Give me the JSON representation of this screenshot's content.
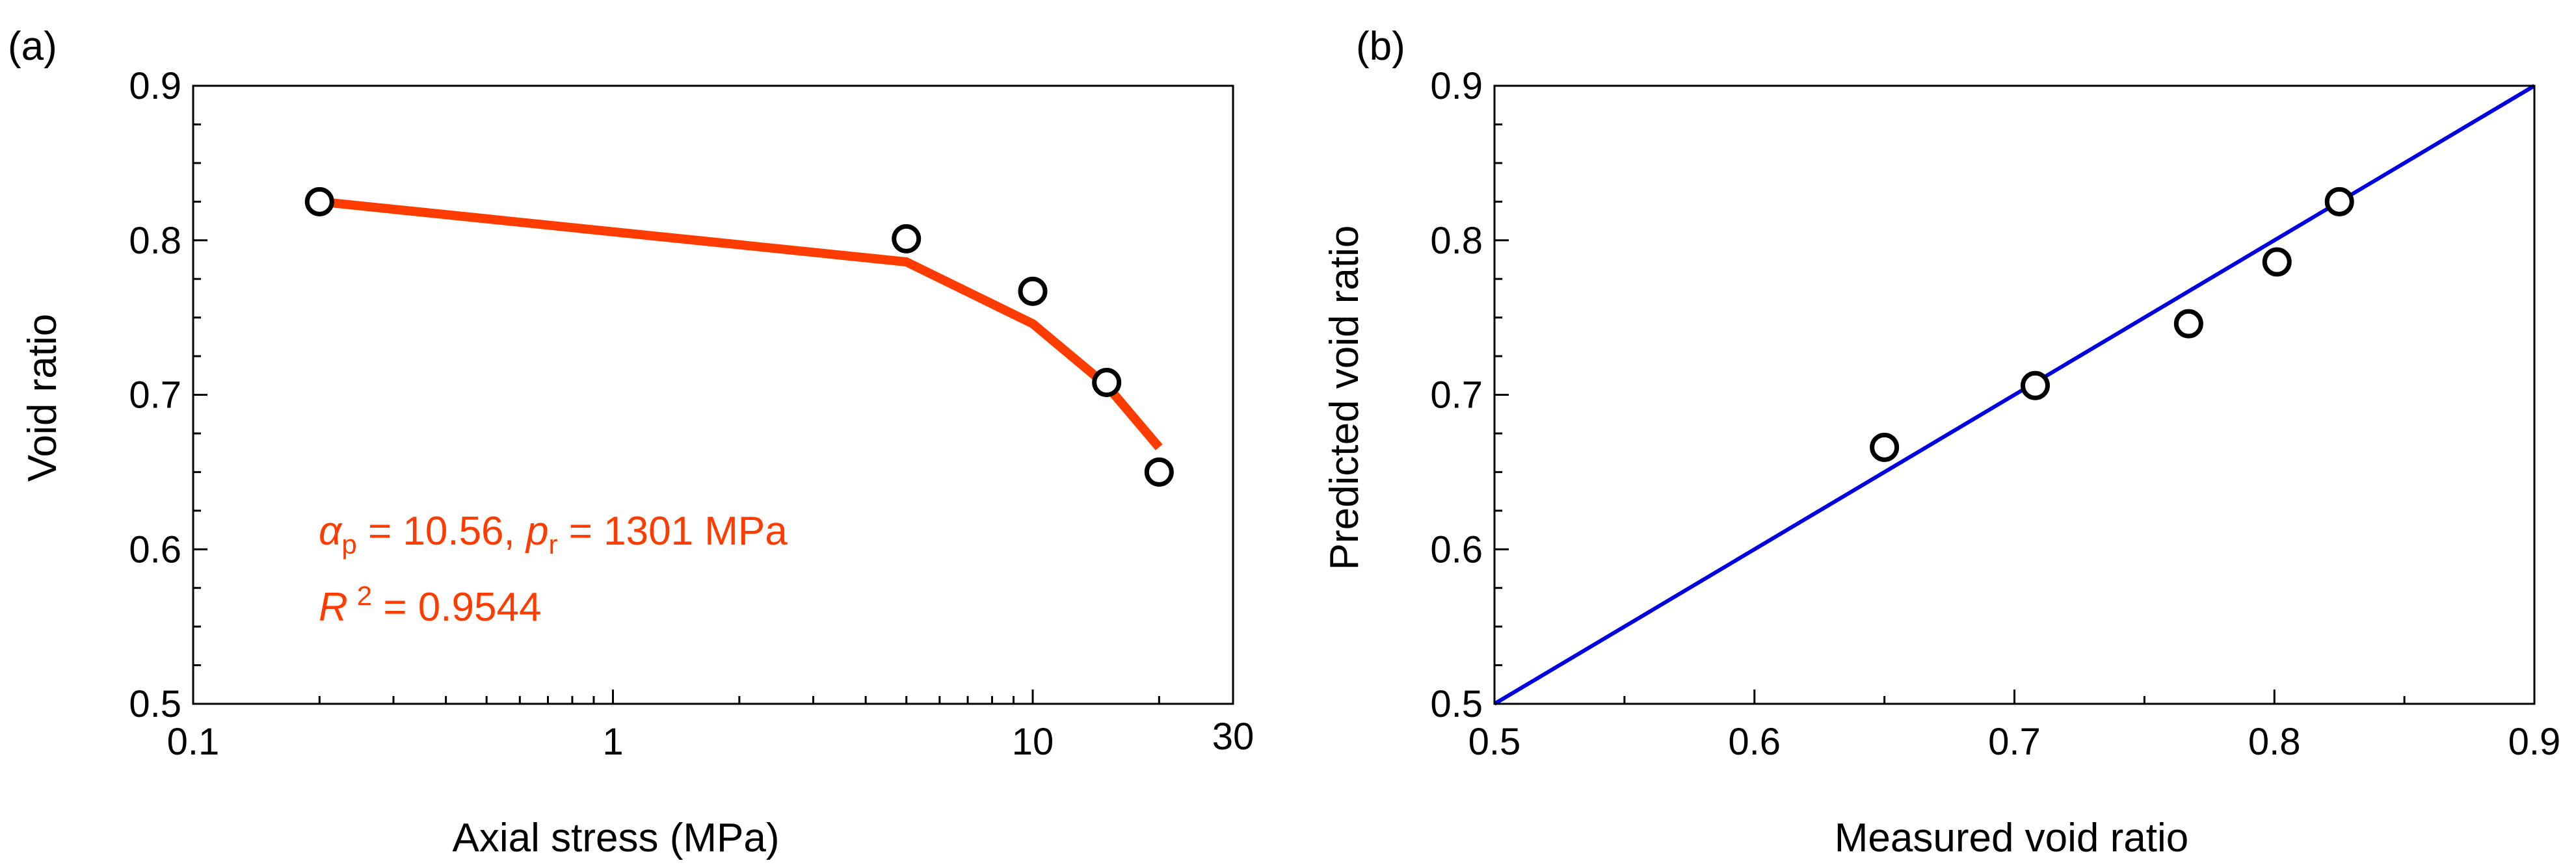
{
  "chart_data": [
    {
      "panel_label": "(a)",
      "type": "scatter",
      "x_scale": "log",
      "xlabel": "Axial stress (MPa)",
      "ylabel": "Void ratio",
      "xlim": [
        0.1,
        30
      ],
      "ylim": [
        0.5,
        0.9
      ],
      "x_ticks": [
        0.1,
        1,
        10,
        30
      ],
      "x_tick_labels": [
        "0.1",
        "1",
        "10",
        "30"
      ],
      "y_ticks": [
        0.5,
        0.6,
        0.7,
        0.8,
        0.9
      ],
      "y_tick_labels": [
        "0.5",
        "0.6",
        "0.7",
        "0.8",
        "0.9"
      ],
      "grid": false,
      "series": [
        {
          "name": "Measured",
          "type": "scatter",
          "x": [
            0.2,
            5,
            10,
            15,
            20
          ],
          "y": [
            0.825,
            0.801,
            0.767,
            0.708,
            0.65
          ]
        },
        {
          "name": "Fitted",
          "type": "line",
          "color": "#ff3c00",
          "x": [
            0.2,
            5,
            10,
            15,
            20
          ],
          "y": [
            0.825,
            0.786,
            0.746,
            0.706,
            0.666
          ]
        }
      ],
      "annotation": {
        "color": "#ff3c00",
        "line1": {
          "alpha_symbol": "α",
          "alpha_sub": "p",
          "alpha_value": " = 10.56, ",
          "p_symbol": "p",
          "p_sub": "r",
          "p_value": " = 1301 MPa"
        },
        "line2": {
          "r_symbol": "R",
          "r_sup": "2",
          "r_value": " = 0.9544"
        }
      }
    },
    {
      "panel_label": "(b)",
      "type": "scatter",
      "xlabel": "Measured void ratio",
      "ylabel": "Predicted void ratio",
      "xlim": [
        0.5,
        0.9
      ],
      "ylim": [
        0.5,
        0.9
      ],
      "x_ticks": [
        0.5,
        0.6,
        0.7,
        0.8,
        0.9
      ],
      "x_tick_labels": [
        "0.5",
        "0.6",
        "0.7",
        "0.8",
        "0.9"
      ],
      "y_ticks": [
        0.5,
        0.6,
        0.7,
        0.8,
        0.9
      ],
      "y_tick_labels": [
        "0.5",
        "0.6",
        "0.7",
        "0.8",
        "0.9"
      ],
      "grid": false,
      "series": [
        {
          "name": "Predicted vs measured",
          "type": "scatter",
          "x": [
            0.65,
            0.708,
            0.767,
            0.801,
            0.825
          ],
          "y": [
            0.666,
            0.706,
            0.746,
            0.786,
            0.825
          ]
        },
        {
          "name": "1:1 line",
          "type": "line",
          "color": "#0000e0",
          "x": [
            0.5,
            0.9
          ],
          "y": [
            0.5,
            0.9
          ]
        }
      ]
    }
  ]
}
